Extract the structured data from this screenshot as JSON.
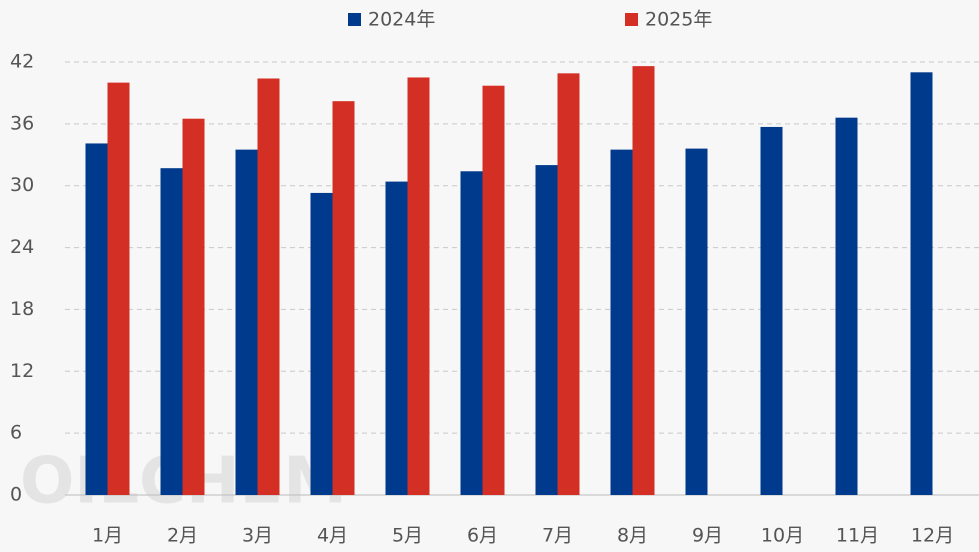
{
  "chart_data": {
    "type": "bar",
    "categories": [
      "1月",
      "2月",
      "3月",
      "4月",
      "5月",
      "6月",
      "7月",
      "8月",
      "9月",
      "10月",
      "11月",
      "12月"
    ],
    "series": [
      {
        "name": "2024年",
        "color": "#003a8c",
        "values": [
          34.1,
          31.7,
          33.5,
          29.3,
          30.4,
          31.4,
          32.0,
          33.5,
          33.6,
          35.7,
          36.6,
          41.0
        ]
      },
      {
        "name": "2025年",
        "color": "#d42f24",
        "values": [
          40.0,
          36.5,
          40.4,
          38.2,
          40.5,
          39.7,
          40.9,
          41.6,
          null,
          null,
          null,
          null
        ]
      }
    ],
    "ylim": [
      0,
      42
    ],
    "yticks": [
      0,
      6,
      12,
      18,
      24,
      30,
      36,
      42
    ],
    "grid": true,
    "watermark": "OILCHEM"
  }
}
